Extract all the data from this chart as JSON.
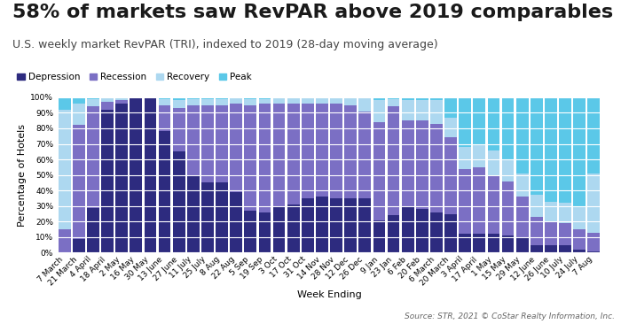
{
  "title": "58% of markets saw RevPAR above 2019 comparables",
  "subtitle": "U.S. weekly market RevPAR (TRI), indexed to 2019 (28-day moving average)",
  "xlabel": "Week Ending",
  "ylabel": "Percentage of Hotels",
  "source": "Source: STR, 2021 © CoStar Realty Information, Inc.",
  "legend_labels": [
    "Depression",
    "Recession",
    "Recovery",
    "Peak"
  ],
  "colors": {
    "Depression": "#2d2b7f",
    "Recession": "#7b6fc4",
    "Recovery": "#add8f0",
    "Peak": "#5bc8e8"
  },
  "categories": [
    "7 March",
    "21 March",
    "4 April",
    "18 April",
    "2 May",
    "16 May",
    "30 May",
    "13 June",
    "27 June",
    "11 July",
    "25 July",
    "8 Aug",
    "22 Aug",
    "5 Sep",
    "19 Sep",
    "3 Oct",
    "17 Oct",
    "31 Oct",
    "14 Nov",
    "28 Nov",
    "12 Dec",
    "26 Dec",
    "9 Jan",
    "23 Jan",
    "6 Feb",
    "20 Feb",
    "6 March",
    "20 March",
    "3 April",
    "17 April",
    "1 May",
    "15 May",
    "29 May",
    "12 June",
    "26 June",
    "10 July",
    "24 July",
    "7 Aug"
  ],
  "depression": [
    0,
    9,
    29,
    92,
    96,
    100,
    100,
    78,
    65,
    50,
    45,
    45,
    39,
    27,
    26,
    30,
    31,
    35,
    36,
    35,
    35,
    35,
    21,
    24,
    30,
    28,
    26,
    25,
    12,
    12,
    12,
    11,
    10,
    5,
    5,
    5,
    2,
    1
  ],
  "recession": [
    15,
    73,
    65,
    5,
    2,
    0,
    0,
    17,
    28,
    45,
    50,
    50,
    57,
    68,
    70,
    66,
    65,
    61,
    60,
    61,
    60,
    56,
    63,
    70,
    55,
    57,
    57,
    49,
    42,
    43,
    37,
    35,
    26,
    18,
    15,
    14,
    13,
    12
  ],
  "recovery": [
    77,
    14,
    5,
    3,
    2,
    0,
    0,
    4,
    5,
    4,
    4,
    4,
    4,
    4,
    3,
    4,
    4,
    4,
    4,
    4,
    5,
    9,
    14,
    5,
    13,
    13,
    15,
    13,
    14,
    15,
    17,
    14,
    15,
    14,
    13,
    13,
    15,
    38
  ],
  "peak": [
    8,
    4,
    1,
    0,
    0,
    0,
    0,
    1,
    2,
    1,
    1,
    1,
    0,
    1,
    1,
    0,
    0,
    0,
    0,
    0,
    0,
    0,
    2,
    1,
    2,
    2,
    2,
    13,
    32,
    30,
    34,
    40,
    49,
    63,
    67,
    68,
    70,
    49
  ],
  "background_color": "#ffffff",
  "title_fontsize": 16,
  "subtitle_fontsize": 9,
  "axis_fontsize": 8,
  "tick_fontsize": 6.5,
  "legend_fontsize": 7.5
}
